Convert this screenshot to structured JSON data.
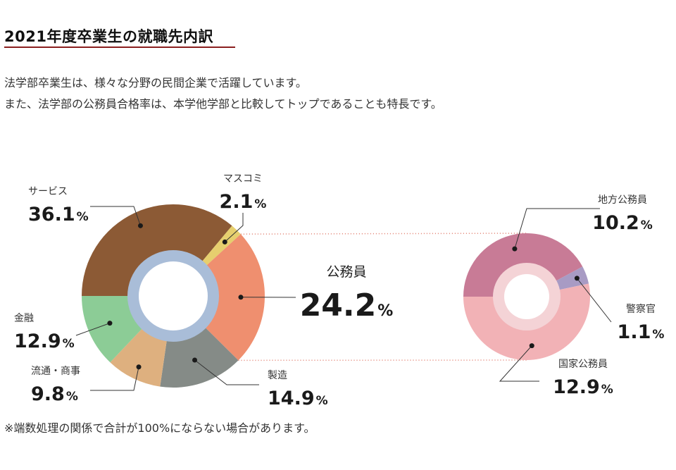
{
  "header": {
    "title": "2021年度卒業生の就職先内訳",
    "intro_line1": "法学部卒業生は、様々な分野の民間企業で活躍しています。",
    "intro_line2": "また、法学部の公務員合格率は、本学他学部と比較してトップであることも特長です。"
  },
  "footnote": "※端数処理の関係で合計が100%にならない場合があります。",
  "colors": {
    "inner_ring_main": "#a9bdd8",
    "inner_ring_sub": "#f4d3d6",
    "connector": "#e07a6a",
    "leader": "#333333"
  },
  "chart_data": [
    {
      "type": "pie",
      "variant": "donut",
      "unit": "%",
      "slices": [
        {
          "label": "サービス",
          "value": 36.1,
          "color": "#8c5a35"
        },
        {
          "label": "マスコミ",
          "value": 2.1,
          "color": "#e6cf6e"
        },
        {
          "label": "公務員",
          "value": 24.2,
          "color": "#ef8f6f"
        },
        {
          "label": "製造",
          "value": 14.9,
          "color": "#858b87"
        },
        {
          "label": "流通・商事",
          "value": 9.8,
          "color": "#deb07f"
        },
        {
          "label": "金融",
          "value": 12.9,
          "color": "#8ccc96"
        }
      ]
    },
    {
      "type": "pie",
      "variant": "donut",
      "unit": "%",
      "breakdown_of": "公務員",
      "slices": [
        {
          "label": "地方公務員",
          "value": 10.2,
          "color": "#c87b96"
        },
        {
          "label": "警察官",
          "value": 1.1,
          "color": "#a89bc4"
        },
        {
          "label": "国家公務員",
          "value": 12.9,
          "color": "#f2b2b6"
        }
      ]
    }
  ]
}
